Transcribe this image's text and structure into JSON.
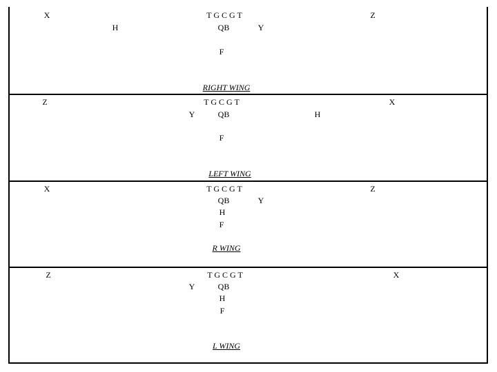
{
  "formations": [
    {
      "name": "RIGHT WING",
      "labels": {
        "x": "X",
        "h": "H",
        "line": "T G C G T",
        "qb": "QB",
        "y": "Y",
        "f": "F",
        "z": "Z"
      }
    },
    {
      "name": "LEFT WING",
      "labels": {
        "z": "Z",
        "line": "T G C G T",
        "y": "Y",
        "qb": "QB",
        "h": "H",
        "f": "F",
        "x": "X"
      }
    },
    {
      "name": "R WING",
      "labels": {
        "x": "X",
        "line": "T G C G T",
        "qb": "QB",
        "y": "Y",
        "h": "H",
        "f": "F",
        "z": "Z"
      }
    },
    {
      "name": "L WING",
      "labels": {
        "z": "Z",
        "line": "T G C G T",
        "y": "Y",
        "qb": "QB",
        "h": "H",
        "f": "F",
        "x": "X"
      }
    }
  ]
}
